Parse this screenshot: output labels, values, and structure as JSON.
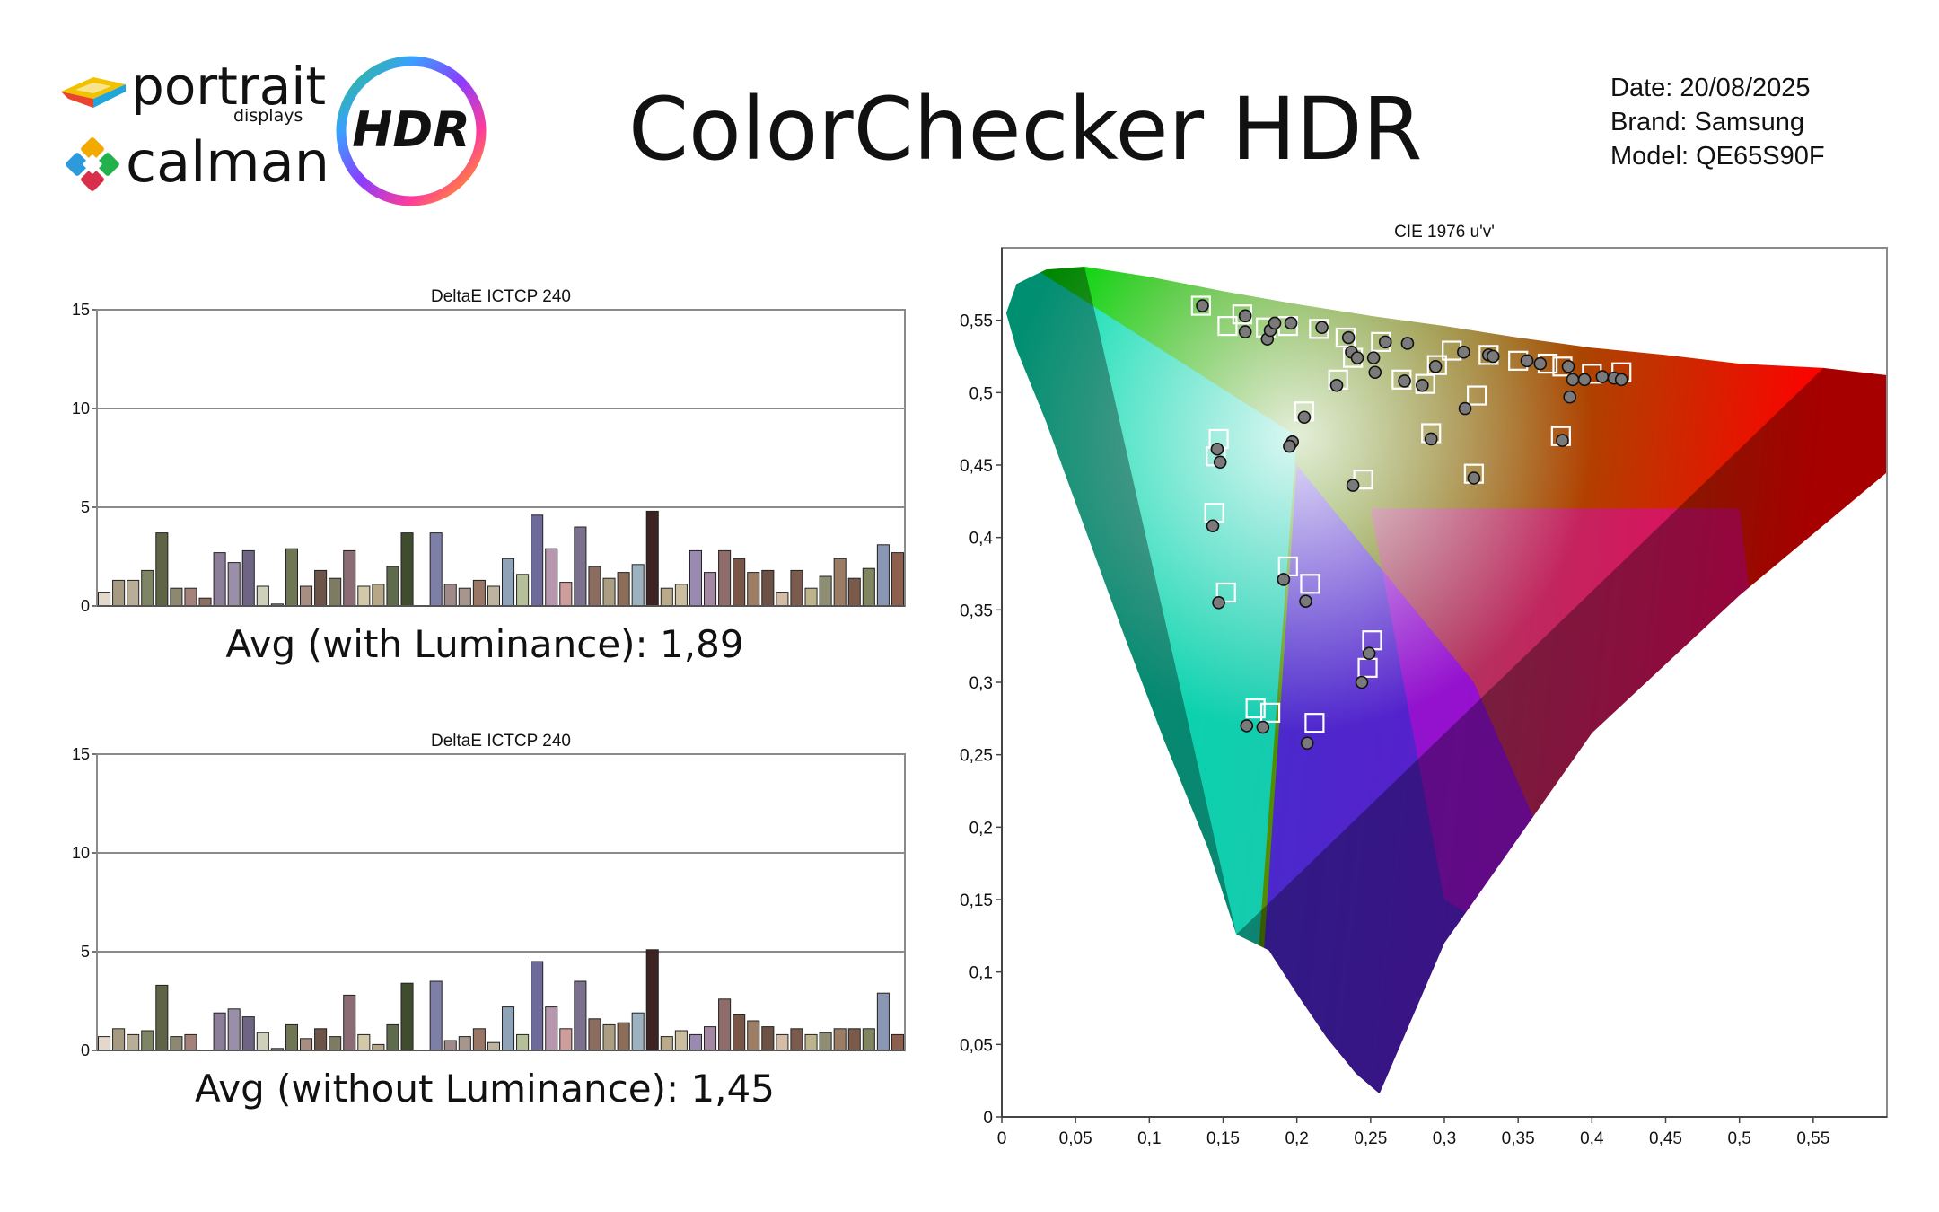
{
  "header": {
    "title": "ColorChecker HDR",
    "date": "Date: 20/08/2025",
    "brand": "Brand: Samsung",
    "model": "Model: QE65S90F"
  },
  "logo": {
    "portrait": "portrait",
    "portrait_sub": "displays",
    "calman": "calman",
    "badge": "HDR",
    "icons": [
      "portrait-logo-icon",
      "calman-logo-icon",
      "hdr-ring-icon"
    ]
  },
  "chart_data": [
    {
      "type": "bar",
      "title": "DeltaE ICTCP 240",
      "ylim": [
        0,
        15
      ],
      "yticks": [
        0,
        5,
        10,
        15
      ],
      "grid": true,
      "values": [
        0.7,
        1.3,
        1.3,
        1.8,
        3.7,
        0.9,
        0.9,
        0.4,
        2.7,
        2.2,
        2.8,
        1.0,
        0.1,
        2.9,
        1.0,
        1.8,
        1.4,
        2.8,
        1.0,
        1.1,
        2.0,
        3.7,
        0.0,
        3.7,
        1.1,
        0.9,
        1.3,
        1.0,
        2.4,
        1.6,
        4.6,
        2.9,
        1.2,
        4.0,
        2.0,
        1.4,
        1.7,
        2.1,
        4.8,
        0.9,
        1.1,
        2.8,
        1.7,
        2.8,
        2.4,
        1.7,
        1.8,
        0.7,
        1.8,
        0.9,
        1.5,
        2.4,
        1.4,
        1.9,
        3.1,
        2.7
      ],
      "colors": [
        "#e2d9cc",
        "#a79a82",
        "#b8ad97",
        "#7d8565",
        "#5e6445",
        "#8c8872",
        "#a4827a",
        "#8b6e5e",
        "#8c7e98",
        "#9a8ea8",
        "#6e6484",
        "#cfd0ba",
        "#7a8a7c",
        "#6e7654",
        "#a88e82",
        "#6c5448",
        "#7d7b62",
        "#8c6c74",
        "#d3c8a7",
        "#b5a787",
        "#5e6b4d",
        "#3f4c2d",
        "#ffffff",
        "#7d7fa6",
        "#9f8a89",
        "#a6968d",
        "#9a7666",
        "#bdb39e",
        "#8ea3b8",
        "#b5bf9a",
        "#6e6b9b",
        "#b797ad",
        "#cf9e9c",
        "#7b708e",
        "#8a6d60",
        "#ac9e83",
        "#8b6e5a",
        "#9db2c0",
        "#3d2422",
        "#b9aa8c",
        "#cabda0",
        "#9a8ab1",
        "#a487a0",
        "#8f6c6a",
        "#7a5646",
        "#9c7e66",
        "#6d5144",
        "#d3bda6",
        "#7c5a4d",
        "#bdb48e",
        "#8e8e74",
        "#9b7c65",
        "#7a5a4a",
        "#818562",
        "#8a97b2",
        "#8c5f4e"
      ],
      "caption": "Avg (with Luminance): 1,89"
    },
    {
      "type": "bar",
      "title": "DeltaE ICTCP 240",
      "ylim": [
        0,
        15
      ],
      "yticks": [
        0,
        5,
        10,
        15
      ],
      "grid": true,
      "values": [
        0.7,
        1.1,
        0.8,
        1.0,
        3.3,
        0.7,
        0.8,
        0.0,
        1.9,
        2.1,
        1.7,
        0.9,
        0.1,
        1.3,
        0.6,
        1.1,
        0.7,
        2.8,
        0.8,
        0.3,
        1.3,
        3.4,
        0.0,
        3.5,
        0.5,
        0.7,
        1.1,
        0.4,
        2.2,
        0.8,
        4.5,
        2.2,
        1.1,
        3.5,
        1.6,
        1.3,
        1.4,
        1.9,
        5.1,
        0.7,
        1.0,
        0.8,
        1.2,
        2.6,
        1.8,
        1.5,
        1.2,
        0.8,
        1.1,
        0.8,
        0.9,
        1.1,
        1.1,
        1.1,
        2.9,
        0.8
      ],
      "colors": [
        "#e2d9cc",
        "#a79a82",
        "#b8ad97",
        "#7d8565",
        "#5e6445",
        "#8c8872",
        "#a4827a",
        "#8b6e5e",
        "#8c7e98",
        "#9a8ea8",
        "#6e6484",
        "#cfd0ba",
        "#7a8a7c",
        "#6e7654",
        "#a88e82",
        "#6c5448",
        "#7d7b62",
        "#8c6c74",
        "#d3c8a7",
        "#b5a787",
        "#5e6b4d",
        "#3f4c2d",
        "#ffffff",
        "#7d7fa6",
        "#9f8a89",
        "#a6968d",
        "#9a7666",
        "#bdb39e",
        "#8ea3b8",
        "#b5bf9a",
        "#6e6b9b",
        "#b797ad",
        "#cf9e9c",
        "#7b708e",
        "#8a6d60",
        "#ac9e83",
        "#8b6e5a",
        "#9db2c0",
        "#3d2422",
        "#b9aa8c",
        "#cabda0",
        "#9a8ab1",
        "#a487a0",
        "#8f6c6a",
        "#7a5646",
        "#9c7e66",
        "#6d5144",
        "#d3bda6",
        "#7c5a4d",
        "#bdb48e",
        "#8e8e74",
        "#9b7c65",
        "#7a5a4a",
        "#818562",
        "#8a97b2",
        "#8c5f4e"
      ],
      "caption": "Avg (without Luminance): 1,45"
    },
    {
      "type": "scatter",
      "title": "CIE 1976 u'v'",
      "xlim": [
        0,
        0.6
      ],
      "ylim": [
        0,
        0.6
      ],
      "xticks": [
        "0",
        "0,05",
        "0,1",
        "0,15",
        "0,2",
        "0,25",
        "0,3",
        "0,35",
        "0,4",
        "0,45",
        "0,5",
        "0,55"
      ],
      "yticks": [
        "0",
        "0,05",
        "0,1",
        "0,15",
        "0,2",
        "0,25",
        "0,3",
        "0,35",
        "0,4",
        "0,45",
        "0,5",
        "0,55"
      ],
      "gamut": {
        "red": [
          0.557,
          0.517
        ],
        "green": [
          0.056,
          0.587
        ],
        "blue": [
          0.159,
          0.126
        ]
      },
      "targets": [
        [
          0.135,
          0.56
        ],
        [
          0.163,
          0.554
        ],
        [
          0.179,
          0.545
        ],
        [
          0.194,
          0.546
        ],
        [
          0.215,
          0.544
        ],
        [
          0.233,
          0.538
        ],
        [
          0.257,
          0.535
        ],
        [
          0.305,
          0.529
        ],
        [
          0.33,
          0.526
        ],
        [
          0.35,
          0.522
        ],
        [
          0.37,
          0.52
        ],
        [
          0.38,
          0.518
        ],
        [
          0.4,
          0.513
        ],
        [
          0.42,
          0.514
        ],
        [
          0.153,
          0.546
        ],
        [
          0.238,
          0.524
        ],
        [
          0.271,
          0.509
        ],
        [
          0.287,
          0.506
        ],
        [
          0.295,
          0.519
        ],
        [
          0.228,
          0.509
        ],
        [
          0.205,
          0.487
        ],
        [
          0.147,
          0.468
        ],
        [
          0.145,
          0.456
        ],
        [
          0.291,
          0.472
        ],
        [
          0.322,
          0.498
        ],
        [
          0.245,
          0.44
        ],
        [
          0.32,
          0.444
        ],
        [
          0.379,
          0.47
        ],
        [
          0.144,
          0.417
        ],
        [
          0.152,
          0.362
        ],
        [
          0.194,
          0.38
        ],
        [
          0.209,
          0.368
        ],
        [
          0.251,
          0.329
        ],
        [
          0.248,
          0.31
        ],
        [
          0.172,
          0.282
        ],
        [
          0.182,
          0.279
        ],
        [
          0.212,
          0.272
        ]
      ],
      "measured": [
        [
          0.136,
          0.56
        ],
        [
          0.165,
          0.553
        ],
        [
          0.165,
          0.542
        ],
        [
          0.18,
          0.537
        ],
        [
          0.182,
          0.543
        ],
        [
          0.185,
          0.548
        ],
        [
          0.196,
          0.548
        ],
        [
          0.217,
          0.545
        ],
        [
          0.235,
          0.538
        ],
        [
          0.237,
          0.528
        ],
        [
          0.241,
          0.524
        ],
        [
          0.252,
          0.524
        ],
        [
          0.253,
          0.514
        ],
        [
          0.26,
          0.535
        ],
        [
          0.275,
          0.534
        ],
        [
          0.273,
          0.508
        ],
        [
          0.285,
          0.505
        ],
        [
          0.294,
          0.518
        ],
        [
          0.313,
          0.528
        ],
        [
          0.33,
          0.526
        ],
        [
          0.333,
          0.525
        ],
        [
          0.356,
          0.522
        ],
        [
          0.365,
          0.52
        ],
        [
          0.384,
          0.518
        ],
        [
          0.387,
          0.509
        ],
        [
          0.395,
          0.509
        ],
        [
          0.407,
          0.511
        ],
        [
          0.415,
          0.51
        ],
        [
          0.42,
          0.509
        ],
        [
          0.385,
          0.497
        ],
        [
          0.314,
          0.489
        ],
        [
          0.227,
          0.505
        ],
        [
          0.205,
          0.483
        ],
        [
          0.197,
          0.466
        ],
        [
          0.195,
          0.463
        ],
        [
          0.146,
          0.461
        ],
        [
          0.148,
          0.452
        ],
        [
          0.291,
          0.468
        ],
        [
          0.238,
          0.436
        ],
        [
          0.32,
          0.441
        ],
        [
          0.38,
          0.467
        ],
        [
          0.143,
          0.408
        ],
        [
          0.147,
          0.355
        ],
        [
          0.191,
          0.371
        ],
        [
          0.206,
          0.356
        ],
        [
          0.249,
          0.32
        ],
        [
          0.244,
          0.3
        ],
        [
          0.166,
          0.27
        ],
        [
          0.177,
          0.269
        ],
        [
          0.207,
          0.258
        ]
      ]
    }
  ]
}
